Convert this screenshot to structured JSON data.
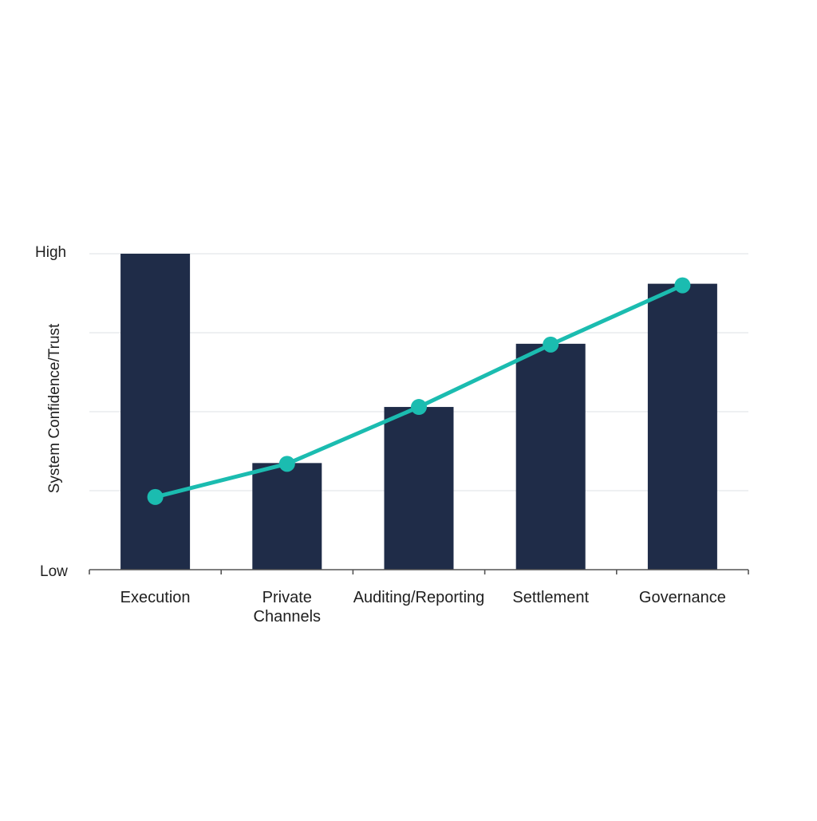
{
  "chart_data": {
    "type": "bar",
    "title": "",
    "xlabel": "",
    "ylabel": "System Confidence/Trust",
    "y_tick_labels": {
      "low": "Low",
      "high": "High"
    },
    "ylim": [
      0,
      4
    ],
    "grid": true,
    "categories": [
      [
        "Execution"
      ],
      [
        "Private",
        "Channels"
      ],
      [
        "Auditing/Reporting"
      ],
      [
        "Settlement"
      ],
      [
        "Governance"
      ]
    ],
    "series": [
      {
        "type": "bar",
        "values": [
          4.0,
          1.35,
          2.06,
          2.86,
          3.62
        ]
      },
      {
        "type": "line",
        "values": [
          0.92,
          1.34,
          2.06,
          2.85,
          3.6
        ]
      }
    ],
    "colors": {
      "bar": "#1f2c48",
      "line": "#1bbcb0",
      "grid": "#e3e6ea",
      "axis": "#555555"
    }
  }
}
